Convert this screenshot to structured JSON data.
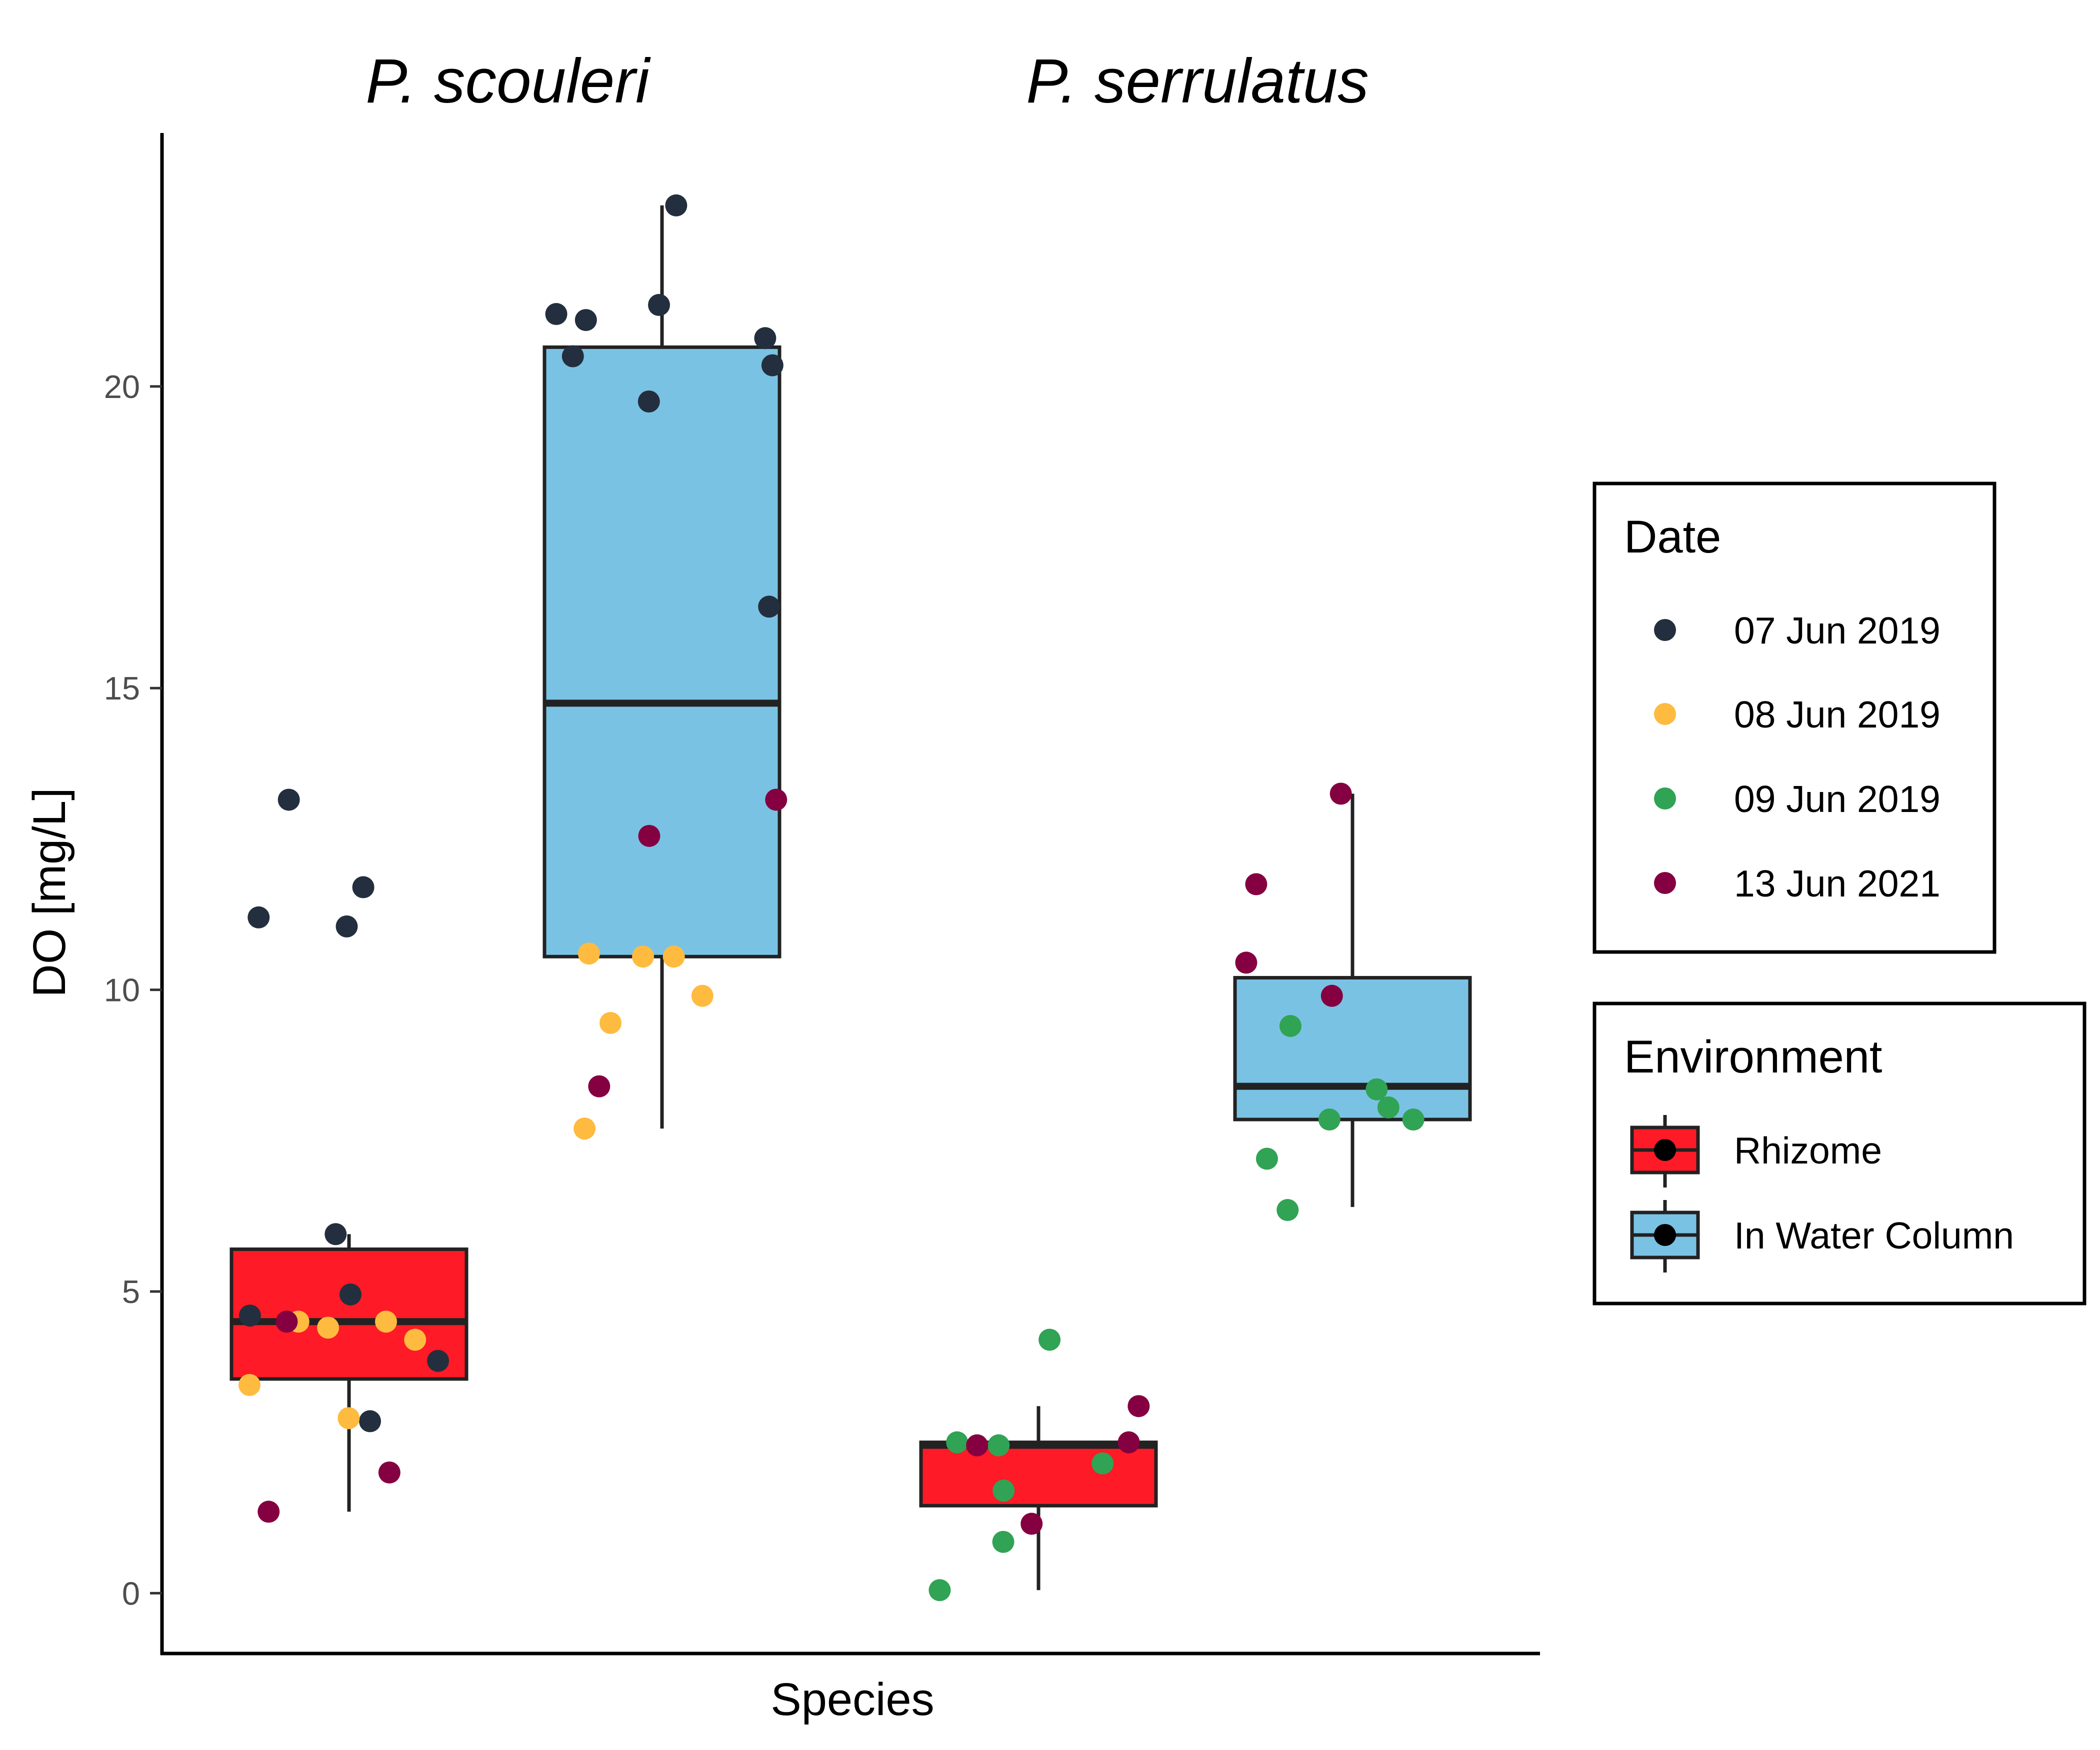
{
  "chart_data": {
    "type": "box",
    "title": "",
    "xlabel": "Species",
    "ylabel": "DO [mg/L]",
    "ylim": [
      -1.0,
      24.2
    ],
    "yticks": [
      0,
      5,
      10,
      15,
      20
    ],
    "ytick_labels": [
      "0",
      "5",
      "10",
      "15",
      "20"
    ],
    "grid": false,
    "species": [
      {
        "name": "P. scouleri"
      },
      {
        "name": "P. serrulatus"
      }
    ],
    "legends": {
      "date": {
        "title": "Date",
        "placement": "right",
        "items": [
          {
            "label": "07 Jun 2019",
            "color": "#232f3e"
          },
          {
            "label": "08 Jun 2019",
            "color": "#febb3f"
          },
          {
            "label": "09 Jun 2019",
            "color": "#31a354"
          },
          {
            "label": "13 Jun 2021",
            "color": "#850040"
          }
        ]
      },
      "environment": {
        "title": "Environment",
        "placement": "right",
        "items": [
          {
            "label": "Rhizome",
            "color": "#fe1a26"
          },
          {
            "label": "In Water Column",
            "color": "#7ac2e4"
          }
        ]
      }
    },
    "boxes": [
      {
        "species": "P. scouleri",
        "environment": "Rhizome",
        "whisker_low": 1.35,
        "q1": 3.55,
        "median": 4.5,
        "q3": 5.7,
        "whisker_high": 5.95
      },
      {
        "species": "P. scouleri",
        "environment": "In Water Column",
        "whisker_low": 7.7,
        "q1": 10.55,
        "median": 14.75,
        "q3": 20.65,
        "whisker_high": 23.0
      },
      {
        "species": "P. serrulatus",
        "environment": "Rhizome",
        "whisker_low": 0.05,
        "q1": 1.45,
        "median": 2.45,
        "q3": 2.5,
        "whisker_high": 3.1
      },
      {
        "species": "P. serrulatus",
        "environment": "In Water Column",
        "whisker_low": 6.4,
        "q1": 7.85,
        "median": 8.4,
        "q3": 10.2,
        "whisker_high": 13.25
      }
    ],
    "points": [
      {
        "species": "P. scouleri",
        "environment": "Rhizome",
        "date": "07 Jun 2019",
        "values": [
          11.05,
          11.7,
          11.2,
          13.15,
          5.95,
          4.95,
          4.6,
          3.85,
          2.85
        ]
      },
      {
        "species": "P. scouleri",
        "environment": "Rhizome",
        "date": "08 Jun 2019",
        "values": [
          4.4,
          4.5,
          4.2,
          4.5,
          3.45,
          2.9
        ]
      },
      {
        "species": "P. scouleri",
        "environment": "Rhizome",
        "date": "13 Jun 2021",
        "values": [
          4.5,
          2.0,
          1.35
        ]
      },
      {
        "species": "P. scouleri",
        "environment": "In Water Column",
        "date": "07 Jun 2019",
        "values": [
          23.0,
          21.35,
          21.1,
          21.2,
          20.8,
          20.35,
          20.5,
          19.75,
          16.35
        ]
      },
      {
        "species": "P. scouleri",
        "environment": "In Water Column",
        "date": "08 Jun 2019",
        "values": [
          10.6,
          10.55,
          10.55,
          9.9,
          9.45,
          7.7
        ]
      },
      {
        "species": "P. scouleri",
        "environment": "In Water Column",
        "date": "13 Jun 2021",
        "values": [
          13.15,
          12.55,
          8.4
        ]
      },
      {
        "species": "P. serrulatus",
        "environment": "Rhizome",
        "date": "09 Jun 2019",
        "values": [
          4.2,
          2.45,
          2.5,
          2.15,
          1.7,
          0.85,
          0.05
        ]
      },
      {
        "species": "P. serrulatus",
        "environment": "Rhizome",
        "date": "13 Jun 2021",
        "values": [
          3.1,
          2.45,
          2.5,
          1.15
        ]
      },
      {
        "species": "P. serrulatus",
        "environment": "In Water Column",
        "date": "09 Jun 2019",
        "values": [
          9.4,
          8.35,
          7.85,
          7.85,
          8.05,
          7.2,
          6.35
        ]
      },
      {
        "species": "P. serrulatus",
        "environment": "In Water Column",
        "date": "13 Jun 2021",
        "values": [
          13.25,
          11.75,
          10.45,
          9.9
        ]
      }
    ]
  }
}
